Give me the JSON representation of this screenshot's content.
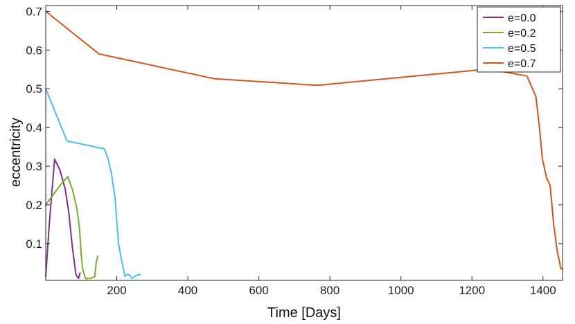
{
  "chart_data": {
    "type": "line",
    "xlabel": "Time [Days]",
    "ylabel": "eccentricity",
    "xlim": [
      0,
      1455
    ],
    "ylim": [
      0.005,
      0.715
    ],
    "xticks": [
      200,
      400,
      600,
      800,
      1000,
      1200,
      1400
    ],
    "yticks": [
      0.1,
      0.2,
      0.3,
      0.4,
      0.5,
      0.6,
      0.7
    ],
    "xtick_labels": [
      "200",
      "400",
      "600",
      "800",
      "1000",
      "1200",
      "1400"
    ],
    "ytick_labels": [
      "0.1",
      "0.2",
      "0.3",
      "0.4",
      "0.5",
      "0.6",
      "0.7"
    ],
    "grid": false,
    "legend_position": "top-right",
    "series": [
      {
        "name": "e=0.0",
        "color": "#7e2f8e",
        "points": [
          [
            0,
            0.015
          ],
          [
            10,
            0.15
          ],
          [
            25,
            0.318
          ],
          [
            40,
            0.29
          ],
          [
            55,
            0.24
          ],
          [
            65,
            0.18
          ],
          [
            75,
            0.09
          ],
          [
            85,
            0.02
          ],
          [
            92,
            0.01
          ],
          [
            97,
            0.025
          ]
        ]
      },
      {
        "name": "e=0.2",
        "color": "#77ac30",
        "points": [
          [
            0,
            0.2
          ],
          [
            20,
            0.225
          ],
          [
            40,
            0.25
          ],
          [
            62,
            0.273
          ],
          [
            75,
            0.24
          ],
          [
            88,
            0.19
          ],
          [
            95,
            0.14
          ],
          [
            100,
            0.07
          ],
          [
            104,
            0.035
          ],
          [
            112,
            0.01
          ],
          [
            125,
            0.01
          ],
          [
            138,
            0.015
          ],
          [
            142,
            0.05
          ],
          [
            147,
            0.07
          ]
        ]
      },
      {
        "name": "e=0.5",
        "color": "#4dbeee",
        "points": [
          [
            0,
            0.5
          ],
          [
            60,
            0.365
          ],
          [
            165,
            0.345
          ],
          [
            175,
            0.32
          ],
          [
            185,
            0.28
          ],
          [
            195,
            0.22
          ],
          [
            200,
            0.16
          ],
          [
            205,
            0.1
          ],
          [
            215,
            0.05
          ],
          [
            223,
            0.015
          ],
          [
            228,
            0.02
          ],
          [
            235,
            0.02
          ],
          [
            243,
            0.01
          ],
          [
            255,
            0.018
          ],
          [
            268,
            0.02
          ]
        ]
      },
      {
        "name": "e=0.7",
        "color": "#d95319",
        "points": [
          [
            0,
            0.7
          ],
          [
            150,
            0.59
          ],
          [
            475,
            0.526
          ],
          [
            765,
            0.509
          ],
          [
            1245,
            0.551
          ],
          [
            1355,
            0.533
          ],
          [
            1380,
            0.48
          ],
          [
            1390,
            0.4
          ],
          [
            1398,
            0.32
          ],
          [
            1410,
            0.27
          ],
          [
            1420,
            0.25
          ],
          [
            1430,
            0.15
          ],
          [
            1440,
            0.08
          ],
          [
            1445,
            0.06
          ],
          [
            1449,
            0.04
          ],
          [
            1453,
            0.033
          ]
        ]
      }
    ]
  }
}
